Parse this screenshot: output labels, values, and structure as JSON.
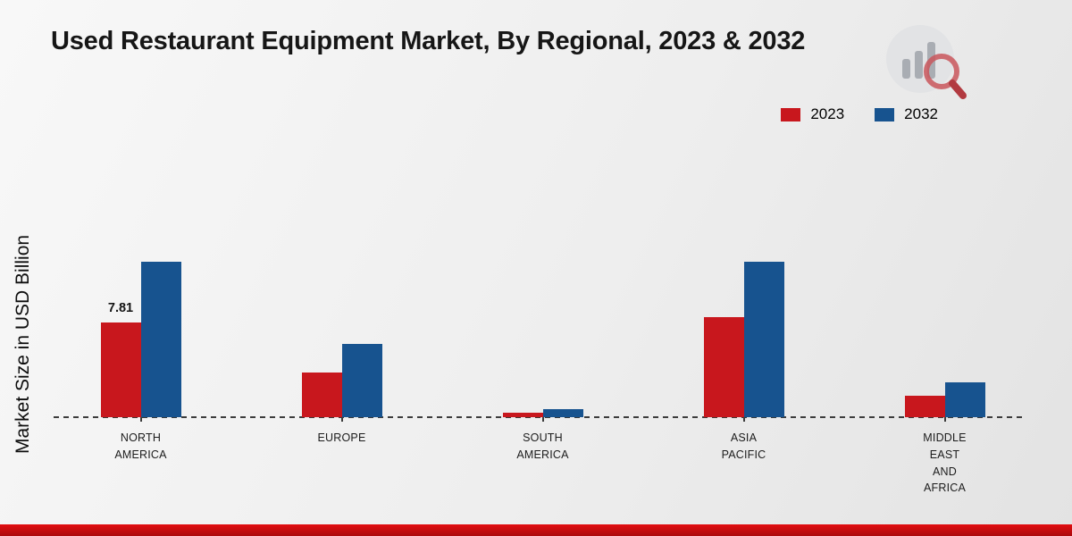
{
  "chart_data": {
    "type": "bar",
    "title": "Used Restaurant Equipment Market, By Regional, 2023 & 2032",
    "ylabel": "Market Size in USD Billion",
    "unit": "USD Billion",
    "categories": [
      {
        "id": "north-america",
        "lines": [
          "NORTH",
          "AMERICA"
        ]
      },
      {
        "id": "europe",
        "lines": [
          "EUROPE"
        ]
      },
      {
        "id": "south-america",
        "lines": [
          "SOUTH",
          "AMERICA"
        ]
      },
      {
        "id": "asia-pacific",
        "lines": [
          "ASIA",
          "PACIFIC"
        ]
      },
      {
        "id": "middle-east-and-africa",
        "lines": [
          "MIDDLE",
          "EAST",
          "AND",
          "AFRICA"
        ]
      }
    ],
    "series": [
      {
        "name": "2023",
        "color": "#c8171d",
        "values": [
          7.81,
          3.65,
          0.35,
          8.2,
          1.8
        ]
      },
      {
        "name": "2032",
        "color": "#17538f",
        "values": [
          12.8,
          6.0,
          0.65,
          12.8,
          2.85
        ]
      }
    ],
    "value_labels": [
      {
        "category_index": 0,
        "series_index": 0,
        "text": "7.81"
      }
    ],
    "ylim": [
      0,
      22
    ],
    "grid": false,
    "legend_position": "top-right",
    "baseline_style": "dashed"
  },
  "colors": {
    "strip_top": "#e20d10",
    "strip_bottom": "#ab0a0d",
    "background": "#ededed",
    "logo_circle": "#e2e3e5",
    "logo_bars": "#a9adb3",
    "logo_ring": "#c9565c",
    "logo_handle": "#b23a40"
  }
}
